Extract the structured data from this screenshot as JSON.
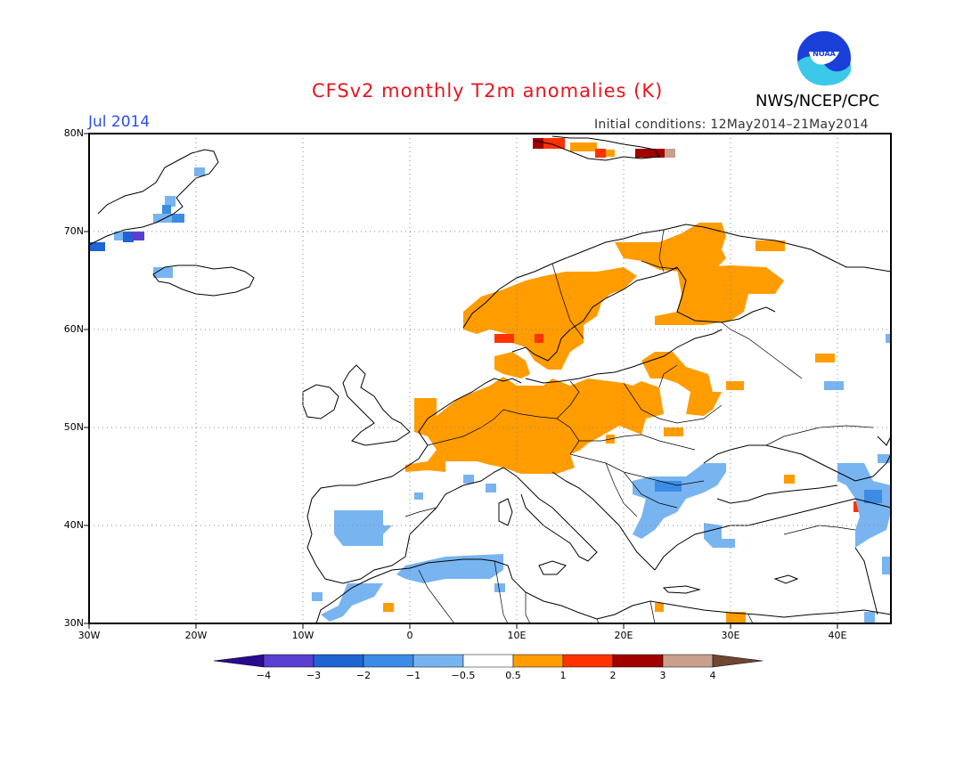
{
  "header": {
    "title": "CFSv2 monthly T2m anomalies (K)",
    "month": "Jul 2014",
    "init_conditions": "Initial conditions: 12May2014–21May2014",
    "agency": "NWS/NCEP/CPC",
    "logo_text": "NOAA"
  },
  "map": {
    "lon_range": [
      -30,
      45
    ],
    "lat_range": [
      30,
      80
    ],
    "lat_labels": [
      "30N",
      "40N",
      "50N",
      "60N",
      "70N",
      "80N"
    ],
    "lon_labels": [
      "30W",
      "20W",
      "10W",
      "0",
      "10E",
      "20E",
      "30E",
      "40E"
    ],
    "grid": "dotted"
  },
  "colorbar": {
    "labels": [
      "−4",
      "−3",
      "−2",
      "−1",
      "−0.5",
      "0.5",
      "1",
      "2",
      "3",
      "4"
    ],
    "colors": [
      "#2a0a8f",
      "#5a3fd0",
      "#1e64d2",
      "#3c8ce6",
      "#78b4f0",
      "#ffffff",
      "#ff9c00",
      "#ff3200",
      "#a00000",
      "#c8a08c",
      "#6e4632"
    ]
  }
}
